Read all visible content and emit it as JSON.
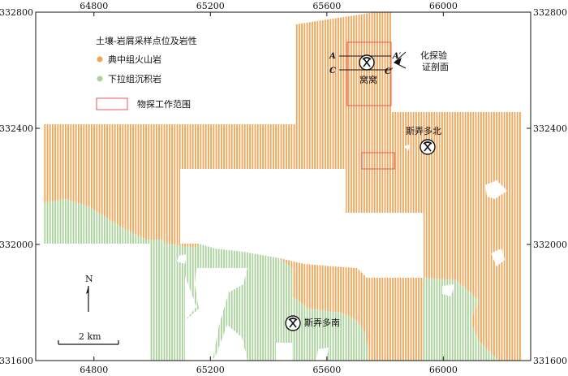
{
  "axes": {
    "x_ticks": [
      64800,
      65200,
      65600,
      66000
    ],
    "y_ticks": [
      332800,
      332400,
      332000,
      331600
    ],
    "xlim": [
      64600,
      66300
    ],
    "ylim": [
      331600,
      332800
    ]
  },
  "legend": {
    "title": "土壤-岩屑采样点位及岩性",
    "items": [
      {
        "label": "典中组火山岩",
        "color": "#f2a456"
      },
      {
        "label": "下拉组沉积岩",
        "color": "#a9d39a"
      },
      {
        "label": "物探工作范围",
        "color": "#e35a5a"
      }
    ]
  },
  "labels": {
    "mine_wowo": "窝窝",
    "mine_north": "斯弄多北",
    "mine_south": "斯弄多南",
    "profile_note_1": "化探验",
    "profile_note_2": "证剖面",
    "point_A": "A",
    "point_A_prime": "A′",
    "point_C": "C",
    "point_C_prime": "C′"
  },
  "north_arrow": {
    "label": "N"
  },
  "scale_bar": {
    "label": "2 km"
  }
}
